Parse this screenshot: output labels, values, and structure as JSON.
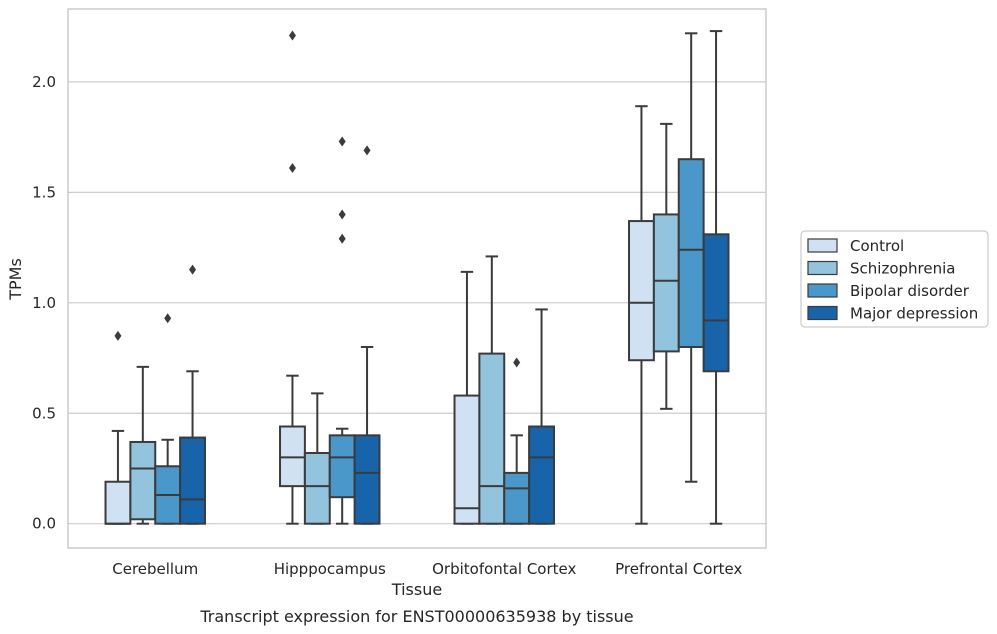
{
  "chart_data": {
    "type": "box",
    "xlabel": "Tissue",
    "ylabel": "TPMs",
    "caption": "Transcript expression for ENST00000635938 by tissue",
    "ylim": [
      -0.11,
      2.33
    ],
    "yticks": [
      "0.0",
      "0.5",
      "1.0",
      "1.5",
      "2.0"
    ],
    "grid": "horizontal",
    "legend_position": "right",
    "categories": [
      "Cerebellum",
      "Hipppocampus",
      "Orbitofontal Cortex",
      "Prefrontal Cortex"
    ],
    "series": [
      {
        "name": "Control",
        "color": "#cfe1f2",
        "boxes": [
          {
            "whislo": 0.0,
            "q1": 0.0,
            "med": 0.0,
            "q3": 0.19,
            "whishi": 0.42,
            "fliers": [
              0.85
            ]
          },
          {
            "whislo": 0.0,
            "q1": 0.17,
            "med": 0.3,
            "q3": 0.44,
            "whishi": 0.67,
            "fliers": [
              1.61,
              2.21
            ]
          },
          {
            "whislo": 0.0,
            "q1": 0.0,
            "med": 0.07,
            "q3": 0.58,
            "whishi": 1.14,
            "fliers": []
          },
          {
            "whislo": 0.0,
            "q1": 0.74,
            "med": 1.0,
            "q3": 1.37,
            "whishi": 1.89,
            "fliers": []
          }
        ]
      },
      {
        "name": "Schizophrenia",
        "color": "#93c4de",
        "boxes": [
          {
            "whislo": 0.0,
            "q1": 0.02,
            "med": 0.25,
            "q3": 0.37,
            "whishi": 0.71,
            "fliers": []
          },
          {
            "whislo": 0.0,
            "q1": 0.0,
            "med": 0.17,
            "q3": 0.32,
            "whishi": 0.59,
            "fliers": []
          },
          {
            "whislo": 0.0,
            "q1": 0.0,
            "med": 0.17,
            "q3": 0.77,
            "whishi": 1.21,
            "fliers": []
          },
          {
            "whislo": 0.52,
            "q1": 0.78,
            "med": 1.1,
            "q3": 1.4,
            "whishi": 1.81,
            "fliers": []
          }
        ]
      },
      {
        "name": "Bipolar disorder",
        "color": "#4a98c9",
        "boxes": [
          {
            "whislo": 0.0,
            "q1": 0.0,
            "med": 0.13,
            "q3": 0.26,
            "whishi": 0.38,
            "fliers": [
              0.93
            ]
          },
          {
            "whislo": 0.0,
            "q1": 0.12,
            "med": 0.3,
            "q3": 0.4,
            "whishi": 0.43,
            "fliers": [
              1.29,
              1.4,
              1.73
            ]
          },
          {
            "whislo": 0.0,
            "q1": 0.0,
            "med": 0.16,
            "q3": 0.23,
            "whishi": 0.4,
            "fliers": [
              0.73
            ]
          },
          {
            "whislo": 0.19,
            "q1": 0.8,
            "med": 1.24,
            "q3": 1.65,
            "whishi": 2.22,
            "fliers": []
          }
        ]
      },
      {
        "name": "Major depression",
        "color": "#1764ab",
        "boxes": [
          {
            "whislo": 0.0,
            "q1": 0.0,
            "med": 0.11,
            "q3": 0.39,
            "whishi": 0.69,
            "fliers": [
              1.15
            ]
          },
          {
            "whislo": 0.0,
            "q1": 0.0,
            "med": 0.23,
            "q3": 0.4,
            "whishi": 0.8,
            "fliers": [
              1.69
            ]
          },
          {
            "whislo": 0.0,
            "q1": 0.0,
            "med": 0.3,
            "q3": 0.44,
            "whishi": 0.97,
            "fliers": []
          },
          {
            "whislo": 0.0,
            "q1": 0.69,
            "med": 0.92,
            "q3": 1.31,
            "whishi": 2.23,
            "fliers": []
          }
        ]
      }
    ]
  }
}
